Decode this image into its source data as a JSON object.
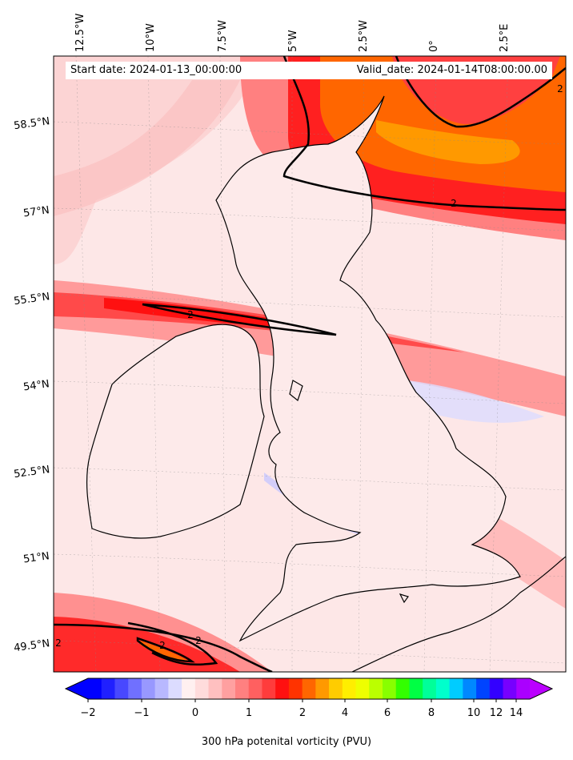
{
  "header": {
    "start_date": "Start date: 2024-01-13_00:00:00",
    "valid_date": "Valid_date: 2024-01-14T08:00:00.00"
  },
  "map": {
    "lat_labels": [
      "58.5°N",
      "57°N",
      "55.5°N",
      "54°N",
      "52.5°N",
      "51°N",
      "49.5°N"
    ],
    "lon_labels": [
      "12.5°W",
      "10°W",
      "7.5°W",
      "5°W",
      "2.5°W",
      "0°",
      "2.5°E"
    ],
    "contour_label": "2",
    "contour_level_pvu": 2,
    "coastline_color": "#000000",
    "ocean_background": "#fde7e7"
  },
  "colorbar": {
    "title": "300 hPa potenital vorticity (PVU)",
    "ticks": [
      "−2",
      "−1",
      "0",
      "1",
      "2",
      "4",
      "6",
      "8",
      "10",
      "12",
      "14"
    ],
    "colors": [
      "#0000ff",
      "#2020ff",
      "#4848ff",
      "#7070ff",
      "#9898ff",
      "#b8b8ff",
      "#dcdcff",
      "#fff0f0",
      "#ffdcdc",
      "#ffc0c0",
      "#ffa0a0",
      "#ff8080",
      "#ff6060",
      "#ff3c3c",
      "#ff1010",
      "#ff3300",
      "#ff6600",
      "#ff9900",
      "#ffcc00",
      "#ffee00",
      "#eeff00",
      "#bbff00",
      "#88ff00",
      "#33ff00",
      "#00ff44",
      "#00ff99",
      "#00ffcc",
      "#00ccff",
      "#0088ff",
      "#0044ff",
      "#3300ff",
      "#7700ff",
      "#aa00ff"
    ],
    "under_color": "#0000ff",
    "over_color": "#bb00ff"
  }
}
